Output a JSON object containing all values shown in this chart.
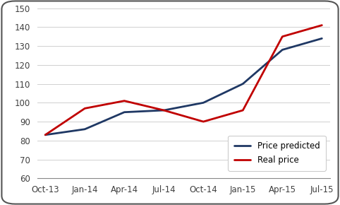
{
  "x_labels": [
    "Oct-13",
    "Jan-14",
    "Apr-14",
    "Jul-14",
    "Oct-14",
    "Jan-15",
    "Apr-15",
    "Jul-15"
  ],
  "price_predicted": [
    83,
    86,
    95,
    96,
    100,
    110,
    128,
    134
  ],
  "real_price": [
    83,
    97,
    101,
    96,
    90,
    96,
    135,
    141
  ],
  "predicted_color": "#1F3864",
  "real_color": "#C00000",
  "ylim": [
    60,
    150
  ],
  "yticks": [
    60,
    70,
    80,
    90,
    100,
    110,
    120,
    130,
    140,
    150
  ],
  "legend_labels": [
    "Price predicted",
    "Real price"
  ],
  "line_width": 2.0,
  "background_color": "#FFFFFF",
  "border_color": "#555555",
  "grid_color": "#D0D0D0",
  "font_size": 8.5,
  "tick_label_color": "#404040"
}
